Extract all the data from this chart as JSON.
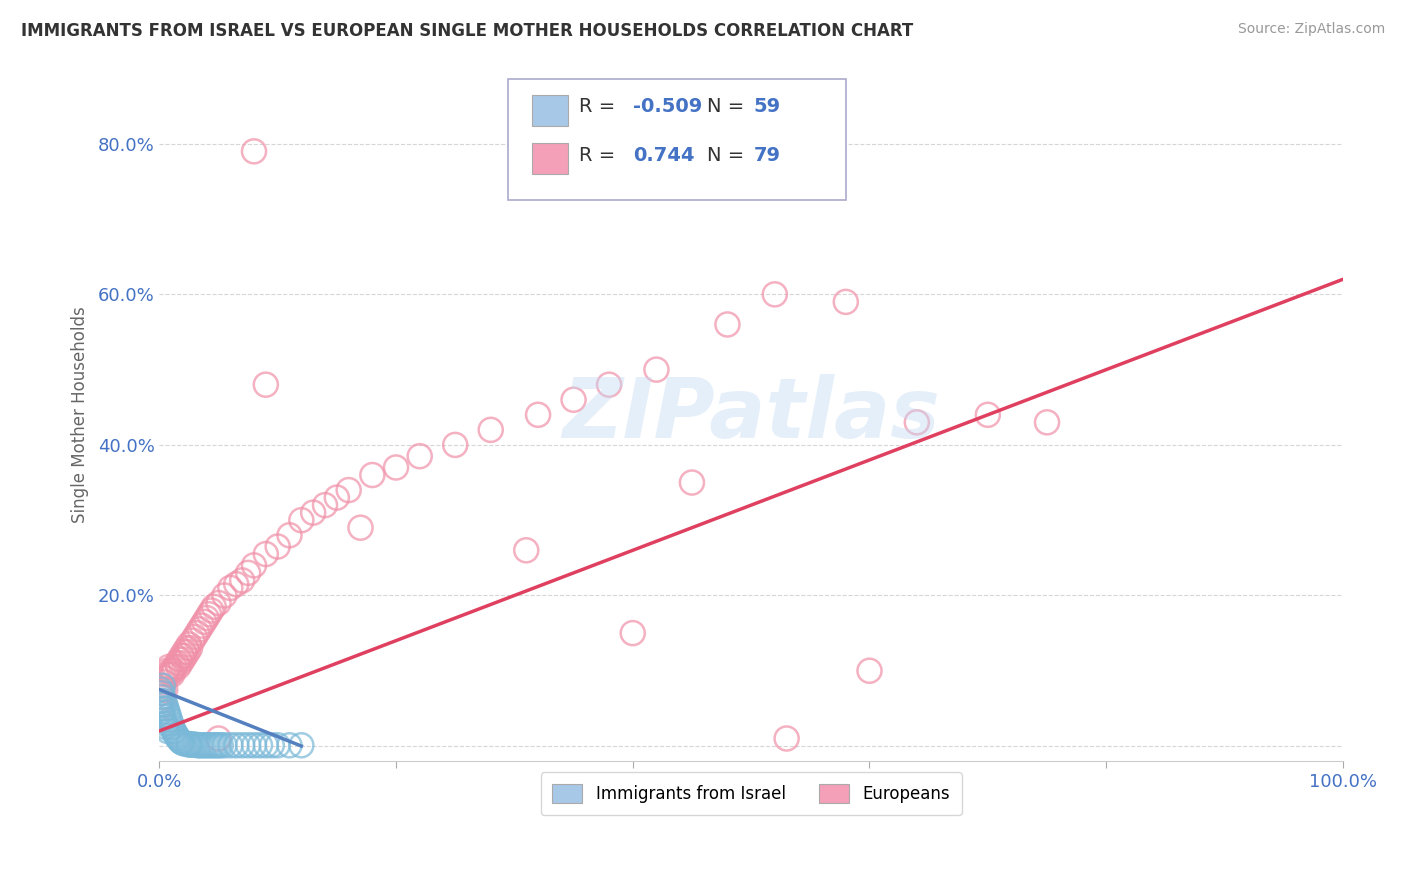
{
  "title": "IMMIGRANTS FROM ISRAEL VS EUROPEAN SINGLE MOTHER HOUSEHOLDS CORRELATION CHART",
  "source": "Source: ZipAtlas.com",
  "ylabel": "Single Mother Households",
  "legend_entries": [
    {
      "label": "Immigrants from Israel",
      "color": "#a8c8e8",
      "R": "-0.509",
      "N": "59"
    },
    {
      "label": "Europeans",
      "color": "#f4a0b8",
      "R": "0.744",
      "N": "79"
    }
  ],
  "ytick_values": [
    0.0,
    0.2,
    0.4,
    0.6,
    0.8
  ],
  "ytick_labels": [
    "",
    "20.0%",
    "40.0%",
    "60.0%",
    "80.0%"
  ],
  "xtick_values": [
    0.0,
    0.2,
    0.4,
    0.6,
    0.8,
    1.0
  ],
  "xtick_labels": [
    "0.0%",
    "",
    "",
    "",
    "",
    "100.0%"
  ],
  "israel_color": "#7ab8d8",
  "european_color": "#f090a8",
  "israel_line_color": "#5580c0",
  "european_line_color": "#e04060",
  "background_color": "#ffffff",
  "grid_color": "#cccccc",
  "watermark": "ZIPatlas",
  "xlim": [
    0.0,
    1.0
  ],
  "ylim": [
    -0.02,
    0.9
  ],
  "israel_scatter": {
    "x": [
      0.0005,
      0.001,
      0.0015,
      0.002,
      0.002,
      0.0025,
      0.003,
      0.003,
      0.003,
      0.004,
      0.004,
      0.005,
      0.005,
      0.006,
      0.006,
      0.007,
      0.007,
      0.008,
      0.009,
      0.01,
      0.011,
      0.012,
      0.013,
      0.014,
      0.015,
      0.016,
      0.017,
      0.018,
      0.019,
      0.02,
      0.022,
      0.024,
      0.025,
      0.026,
      0.028,
      0.03,
      0.032,
      0.034,
      0.036,
      0.038,
      0.04,
      0.042,
      0.044,
      0.046,
      0.048,
      0.05,
      0.052,
      0.055,
      0.06,
      0.065,
      0.07,
      0.075,
      0.08,
      0.085,
      0.09,
      0.095,
      0.1,
      0.11,
      0.12
    ],
    "y": [
      0.06,
      0.075,
      0.055,
      0.065,
      0.045,
      0.07,
      0.05,
      0.04,
      0.08,
      0.06,
      0.035,
      0.055,
      0.03,
      0.05,
      0.025,
      0.045,
      0.02,
      0.04,
      0.035,
      0.03,
      0.025,
      0.02,
      0.018,
      0.015,
      0.012,
      0.01,
      0.008,
      0.006,
      0.005,
      0.004,
      0.003,
      0.003,
      0.002,
      0.002,
      0.002,
      0.002,
      0.001,
      0.001,
      0.001,
      0.001,
      0.001,
      0.001,
      0.001,
      0.001,
      0.001,
      0.001,
      0.001,
      0.001,
      0.001,
      0.001,
      0.001,
      0.001,
      0.001,
      0.001,
      0.001,
      0.001,
      0.001,
      0.001,
      0.001
    ]
  },
  "european_scatter": {
    "x": [
      0.0005,
      0.001,
      0.001,
      0.002,
      0.002,
      0.003,
      0.003,
      0.004,
      0.005,
      0.005,
      0.006,
      0.007,
      0.008,
      0.009,
      0.01,
      0.011,
      0.012,
      0.013,
      0.015,
      0.016,
      0.017,
      0.018,
      0.019,
      0.02,
      0.021,
      0.022,
      0.023,
      0.024,
      0.025,
      0.026,
      0.028,
      0.03,
      0.032,
      0.034,
      0.036,
      0.038,
      0.04,
      0.042,
      0.044,
      0.046,
      0.05,
      0.055,
      0.06,
      0.065,
      0.07,
      0.075,
      0.08,
      0.09,
      0.1,
      0.11,
      0.12,
      0.13,
      0.14,
      0.15,
      0.16,
      0.18,
      0.2,
      0.22,
      0.25,
      0.28,
      0.32,
      0.35,
      0.38,
      0.42,
      0.48,
      0.52,
      0.58,
      0.64,
      0.7,
      0.75,
      0.53,
      0.09,
      0.17,
      0.31,
      0.45,
      0.6,
      0.05,
      0.4,
      0.08
    ],
    "y": [
      0.05,
      0.06,
      0.07,
      0.08,
      0.055,
      0.065,
      0.075,
      0.085,
      0.09,
      0.075,
      0.095,
      0.1,
      0.105,
      0.095,
      0.1,
      0.095,
      0.1,
      0.105,
      0.11,
      0.105,
      0.115,
      0.11,
      0.12,
      0.115,
      0.125,
      0.12,
      0.13,
      0.125,
      0.135,
      0.13,
      0.14,
      0.145,
      0.15,
      0.155,
      0.16,
      0.165,
      0.17,
      0.175,
      0.18,
      0.185,
      0.19,
      0.2,
      0.21,
      0.215,
      0.22,
      0.23,
      0.24,
      0.255,
      0.265,
      0.28,
      0.3,
      0.31,
      0.32,
      0.33,
      0.34,
      0.36,
      0.37,
      0.385,
      0.4,
      0.42,
      0.44,
      0.46,
      0.48,
      0.5,
      0.56,
      0.6,
      0.59,
      0.43,
      0.44,
      0.43,
      0.01,
      0.48,
      0.29,
      0.26,
      0.35,
      0.1,
      0.01,
      0.15,
      0.79
    ]
  },
  "israel_line": {
    "x": [
      0.0,
      0.12
    ],
    "y": [
      0.075,
      0.0
    ]
  },
  "european_line": {
    "x": [
      0.0,
      1.0
    ],
    "y": [
      0.02,
      0.62
    ]
  }
}
